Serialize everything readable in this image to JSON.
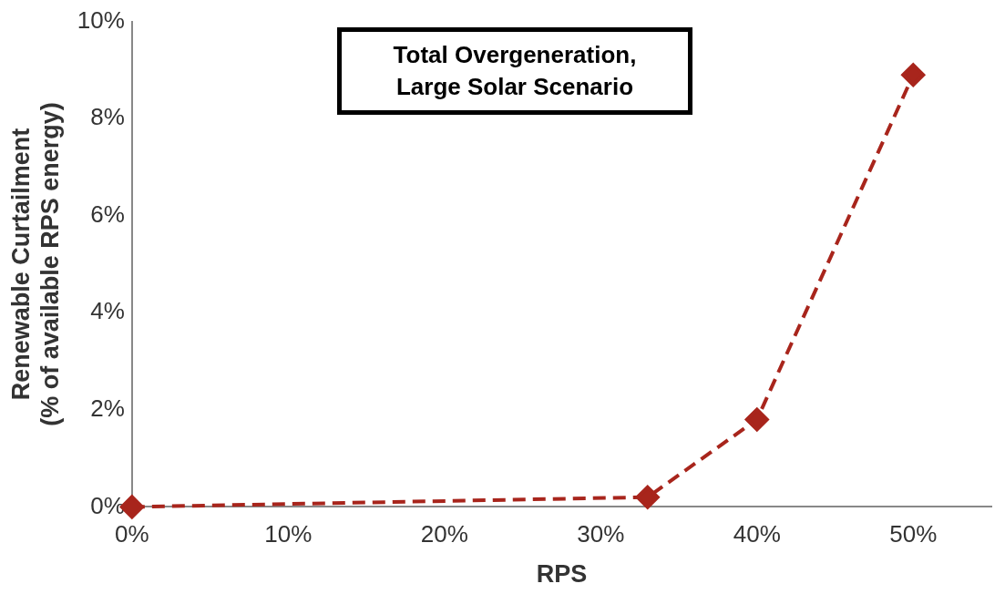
{
  "chart_data": {
    "type": "line",
    "xlabel": "RPS",
    "ylabel": "Renewable Curtailment\n(% of available RPS energy)",
    "annotations": [
      "Total Overgeneration,\nLarge Solar Scenario"
    ],
    "x": [
      0,
      33,
      40,
      50
    ],
    "series": [
      {
        "color": "#a8251c",
        "values": [
          0,
          0.2,
          1.8,
          8.9
        ]
      }
    ],
    "xlim": [
      0,
      55
    ],
    "xticks": [
      {
        "value": 0,
        "label": "0%"
      },
      {
        "value": 10,
        "label": "10%"
      },
      {
        "value": 20,
        "label": "20%"
      },
      {
        "value": 30,
        "label": "30%"
      },
      {
        "value": 40,
        "label": "40%"
      },
      {
        "value": 50,
        "label": "50%"
      }
    ],
    "ylim": [
      0,
      10
    ],
    "yticks": [
      {
        "value": 0,
        "label": "0%"
      },
      {
        "value": 2,
        "label": "2%"
      },
      {
        "value": 4,
        "label": "4%"
      },
      {
        "value": 6,
        "label": "6%"
      },
      {
        "value": 8,
        "label": "8%"
      },
      {
        "value": 10,
        "label": "10%"
      }
    ],
    "grid": false,
    "legend": false,
    "marker": "diamond",
    "line_style": "dashed"
  }
}
